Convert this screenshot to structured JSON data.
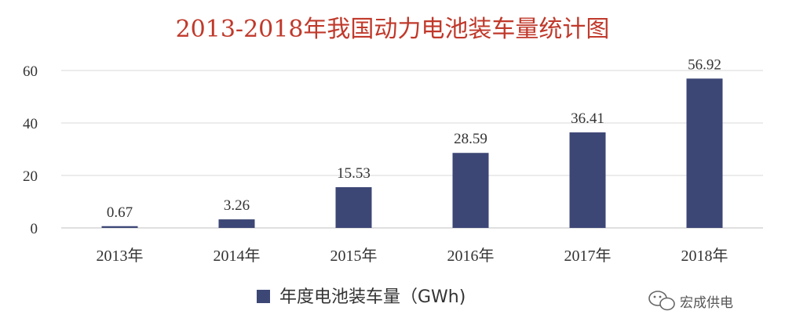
{
  "chart_data": {
    "type": "bar",
    "title": "2013-2018年我国动力电池装车量统计图",
    "categories": [
      "2013年",
      "2014年",
      "2015年",
      "2016年",
      "2017年",
      "2018年"
    ],
    "series": [
      {
        "name": "年度电池装车量（GWh)",
        "values": [
          0.67,
          3.26,
          15.53,
          28.59,
          36.41,
          56.92
        ]
      }
    ],
    "data_labels": [
      "0.67",
      "3.26",
      "15.53",
      "28.59",
      "36.41",
      "56.92"
    ],
    "ylim": [
      0,
      60
    ],
    "yticks": [
      0,
      20,
      40,
      60
    ],
    "xlabel": "",
    "ylabel": "",
    "grid": true,
    "legend_position": "bottom-center",
    "bar_color": "#3d4776",
    "title_color": "#c0392b"
  },
  "watermark": {
    "text": "宏成供电",
    "icon": "wechat-icon"
  }
}
